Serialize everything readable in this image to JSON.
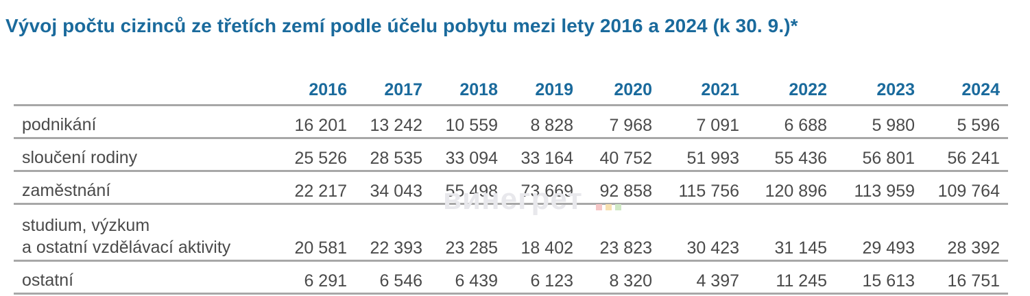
{
  "title": "Vývoj počtu cizinců ze třetích zemí podle účelu pobytu mezi lety 2016 a 2024 (k 30. 9.)*",
  "table": {
    "years": [
      "2016",
      "2017",
      "2018",
      "2019",
      "2020",
      "2021",
      "2022",
      "2023",
      "2024"
    ],
    "rows": [
      {
        "label": "podnikání",
        "values": [
          "16 201",
          "13 242",
          "10 559",
          "8 828",
          "7 968",
          "7 091",
          "6 688",
          "5 980",
          "5 596"
        ]
      },
      {
        "label": "sloučení rodiny",
        "values": [
          "25 526",
          "28 535",
          "33 094",
          "33 164",
          "40 752",
          "51 993",
          "55 436",
          "56 801",
          "56 241"
        ]
      },
      {
        "label": "zaměstnání",
        "values": [
          "22 217",
          "34 043",
          "55 498",
          "73 669",
          "92 858",
          "115 756",
          "120 896",
          "113 959",
          "109 764"
        ]
      },
      {
        "label_line1": "studium, výzkum",
        "label_line2": "a ostatní vzdělávací aktivity",
        "values": [
          "20 581",
          "22 393",
          "23 285",
          "18 402",
          "23 823",
          "30 423",
          "31 145",
          "29 493",
          "28 392"
        ]
      },
      {
        "label": "ostatní",
        "values": [
          "6 291",
          "6 546",
          "6 439",
          "6 123",
          "8 320",
          "4 397",
          "11 245",
          "15 613",
          "16 751"
        ]
      }
    ]
  },
  "watermark": {
    "text": "винегрет",
    "dot_colors": [
      "#f5c6c6",
      "#f7e0b0",
      "#cfe8c4"
    ]
  },
  "colors": {
    "accent": "#1a6a9c",
    "text": "#4a4a4a",
    "rule": "#a7a7a7"
  }
}
